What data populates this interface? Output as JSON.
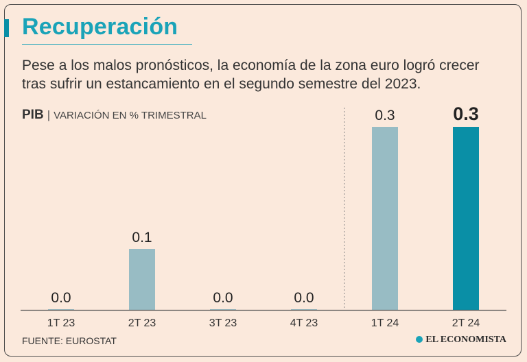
{
  "title": "Recuperación",
  "subtitle": "Pese a los malos pronósticos, la economía de la zona euro logró crecer tras sufrir un estancamiento en el segundo semestre del 2023.",
  "metric": {
    "name": "PIB",
    "separator": "|",
    "unit": "VARIACIÓN EN % TRIMESTRAL"
  },
  "source": "FUENTE: EUROSTAT",
  "brand": "EL ECONOMISTA",
  "chart_data": {
    "type": "bar",
    "title": "PIB | VARIACIÓN EN % TRIMESTRAL",
    "categories": [
      "1T 23",
      "2T 23",
      "3T 23",
      "4T 23",
      "1T 24",
      "2T 24"
    ],
    "values": [
      0.0,
      0.1,
      0.0,
      0.0,
      0.3,
      0.3
    ],
    "value_labels": [
      "0.0",
      "0.1",
      "0.0",
      "0.0",
      "0.3",
      "0.3"
    ],
    "highlight_index": 5,
    "divider_before_index": 4,
    "ylim": [
      0,
      0.3
    ],
    "xlabel": "",
    "ylabel": "",
    "colors": {
      "bar": "#98bcc4",
      "highlight": "#0a8fa6",
      "axis": "#555555",
      "divider": "#888888"
    }
  }
}
